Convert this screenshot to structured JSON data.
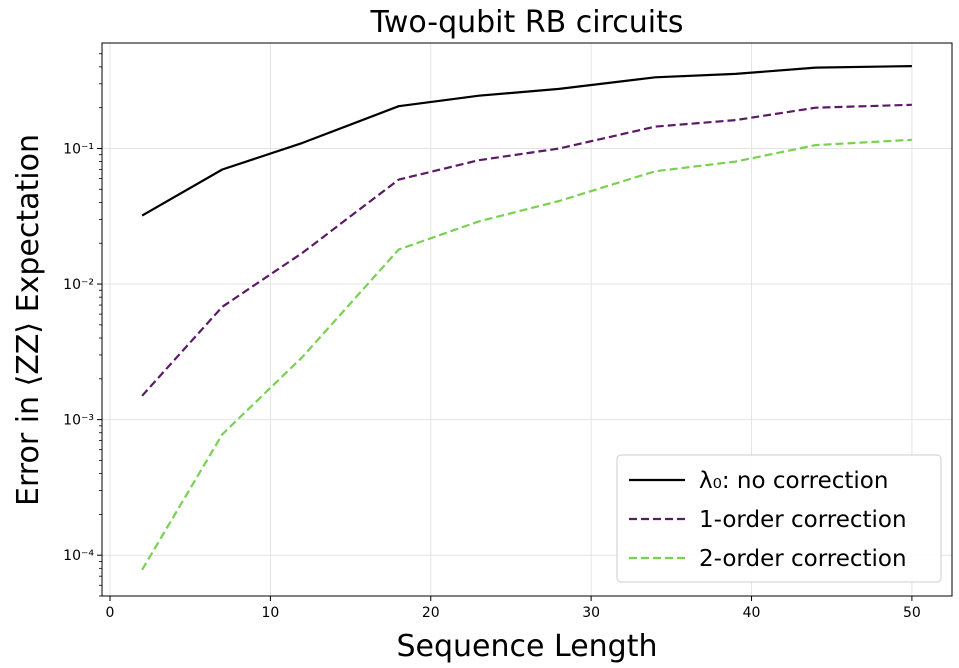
{
  "chart_data": {
    "type": "line",
    "title": "Two-qubit RB circuits",
    "xlabel": "Sequence Length",
    "ylabel": "Error in ⟨ZZ⟩ Expectation",
    "xscale": "linear",
    "yscale": "log",
    "xlim": [
      -0.5,
      52.5
    ],
    "ylim": [
      5e-05,
      0.6
    ],
    "xticks": [
      0,
      10,
      20,
      30,
      40,
      50
    ],
    "xtick_labels": [
      "0",
      "10",
      "20",
      "30",
      "40",
      "50"
    ],
    "yticks": [
      0.0001,
      0.001,
      0.01,
      0.1
    ],
    "ytick_labels": [
      "10⁻⁴",
      "10⁻³",
      "10⁻²",
      "10⁻¹"
    ],
    "grid": true,
    "legend_position": "lower-right",
    "x": [
      2,
      7,
      12,
      18,
      23,
      28,
      34,
      39,
      44,
      50
    ],
    "series": [
      {
        "name": "λ₀: no correction",
        "color": "#000000",
        "dash": "solid",
        "values": [
          0.032,
          0.07,
          0.11,
          0.205,
          0.245,
          0.275,
          0.335,
          0.355,
          0.395,
          0.405
        ]
      },
      {
        "name": "1-order correction",
        "color": "#5b1a66",
        "dash": "dashed",
        "values": [
          0.0015,
          0.0068,
          0.017,
          0.059,
          0.082,
          0.1,
          0.145,
          0.162,
          0.2,
          0.21
        ]
      },
      {
        "name": "2-order correction",
        "color": "#79d151",
        "dash": "dashed",
        "values": [
          7.8e-05,
          0.00078,
          0.0029,
          0.018,
          0.029,
          0.041,
          0.068,
          0.08,
          0.106,
          0.116
        ]
      }
    ]
  }
}
